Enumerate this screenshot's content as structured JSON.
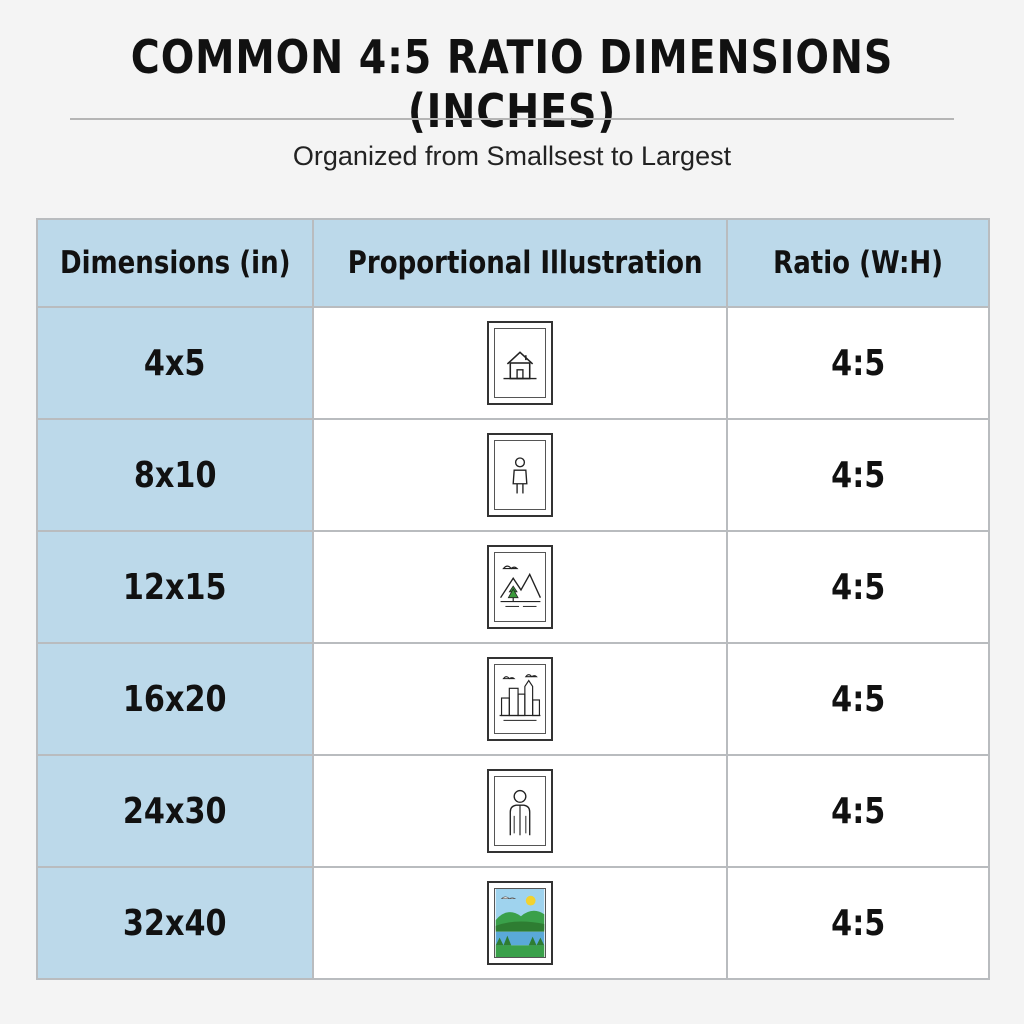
{
  "title": "COMMON 4:5 RATIO DIMENSIONS (INCHES)",
  "subtitle": "Organized from Smallsest to Largest",
  "table": {
    "headers": [
      "Dimensions (in)",
      "Proportional Illustration",
      "Ratio (W:H)"
    ],
    "rows": [
      {
        "dimensions": "4x5",
        "illustration": "house-icon",
        "ratio": "4:5"
      },
      {
        "dimensions": "8x10",
        "illustration": "person-icon",
        "ratio": "4:5"
      },
      {
        "dimensions": "12x15",
        "illustration": "mountain-landscape-icon",
        "ratio": "4:5"
      },
      {
        "dimensions": "16x20",
        "illustration": "city-skyline-icon",
        "ratio": "4:5"
      },
      {
        "dimensions": "24x30",
        "illustration": "portrait-person-icon",
        "ratio": "4:5"
      },
      {
        "dimensions": "32x40",
        "illustration": "color-landscape-icon",
        "ratio": "4:5"
      }
    ]
  },
  "colors": {
    "header_fill": "#bcd9ea",
    "grid": "#b9bcbf",
    "background": "#f4f4f4"
  }
}
